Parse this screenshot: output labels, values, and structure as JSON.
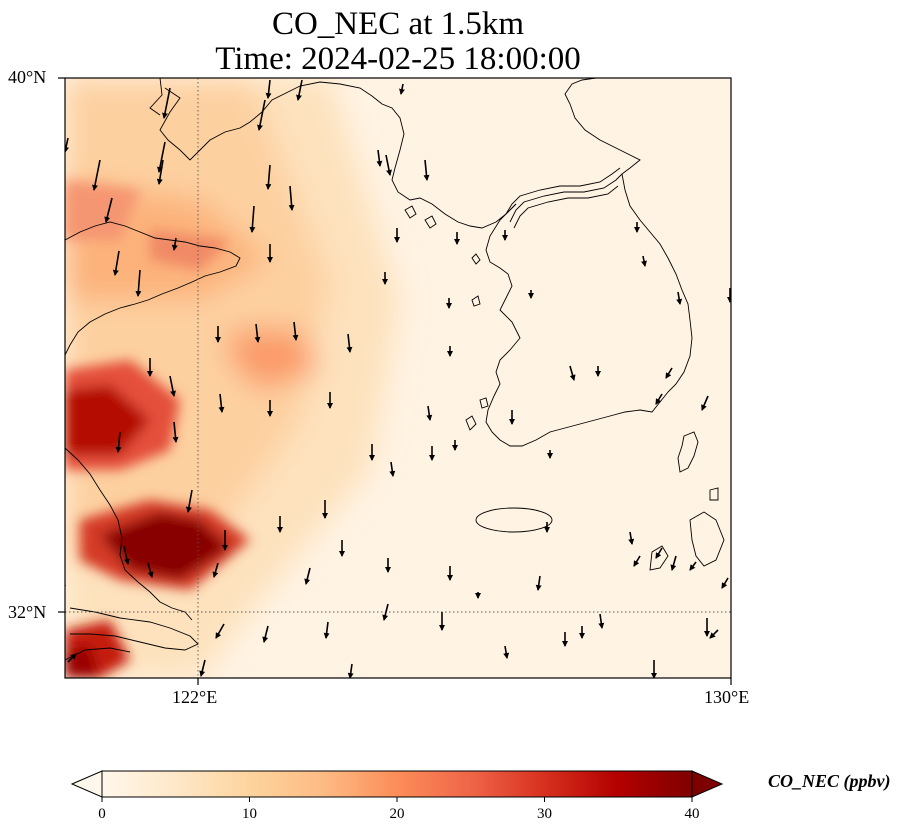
{
  "title": {
    "line1": "CO_NEC at 1.5km",
    "line2": "Time: 2024-02-25 18:00:00"
  },
  "axes": {
    "lat_labels": [
      "40°N",
      "32°N"
    ],
    "lon_labels": [
      "122°E",
      "130°E"
    ],
    "lon_range": [
      120,
      130
    ],
    "lat_range": [
      31,
      40
    ],
    "gridlines": {
      "lon": 122,
      "lat": 32,
      "style": "dotted"
    }
  },
  "colorbar": {
    "label": "CO_NEC (ppbv)",
    "ticks": [
      "0",
      "10",
      "20",
      "30",
      "40"
    ],
    "range": [
      0,
      40
    ],
    "extend": "both",
    "colormap": "OrRd",
    "colors": [
      "#fff7ec",
      "#fee8c8",
      "#fdd49e",
      "#fdbb84",
      "#fc8d59",
      "#ef6548",
      "#d7301f",
      "#b30000",
      "#7f0000"
    ]
  },
  "map": {
    "field": "CO_NEC",
    "level": "1.5km",
    "units": "ppbv",
    "features": [
      "coastlines",
      "wind vectors"
    ]
  }
}
